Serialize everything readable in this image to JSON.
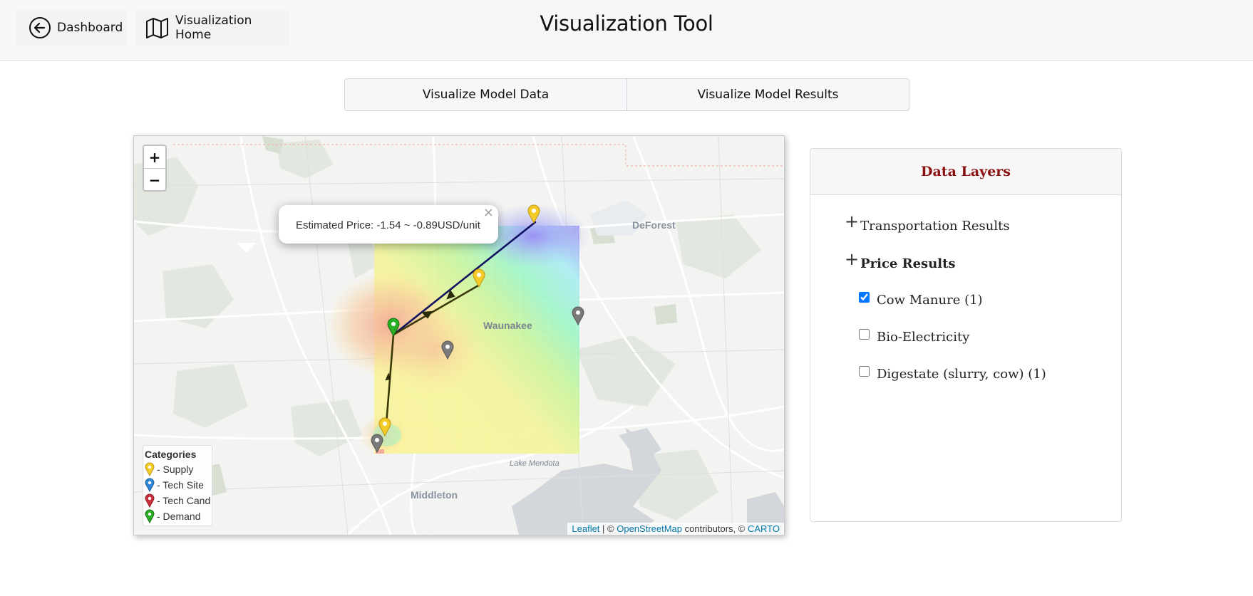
{
  "header": {
    "title": "Visualization Tool",
    "dashboard_label": "Dashboard",
    "viz_home_label": "Visualization Home"
  },
  "tabs": [
    {
      "label": "Visualize Model Data"
    },
    {
      "label": "Visualize Model Results"
    }
  ],
  "map": {
    "zoom_in": "+",
    "zoom_out": "−",
    "places": {
      "deforest": "DeForest",
      "waunakee": "Waunakee",
      "middleton": "Middleton",
      "lake_mendota": "Lake Mendota"
    },
    "popup": {
      "text": "Estimated Price: -1.54 ~ -0.89USD/unit",
      "close": "×"
    },
    "legend": {
      "title": "Categories",
      "items": [
        {
          "label": "- Supply",
          "color": "#f5cb2a"
        },
        {
          "label": "- Tech Site",
          "color": "#2f86d6"
        },
        {
          "label": "- Tech Cand",
          "color": "#c9303c"
        },
        {
          "label": "- Demand",
          "color": "#2aad27"
        }
      ]
    },
    "attribution": {
      "leaflet": "Leaflet",
      "sep1": " | © ",
      "osm": "OpenStreetMap",
      "contributors": " contributors, © ",
      "carto": "CARTO"
    }
  },
  "panel": {
    "title": "Data Layers",
    "groups": [
      {
        "label": "Transportation Results",
        "expand_symbol": "+"
      },
      {
        "label": "Price Results",
        "expand_symbol": "+"
      }
    ],
    "options": [
      {
        "label": "Cow Manure (1)",
        "checked": true
      },
      {
        "label": "Bio-Electricity",
        "checked": false
      },
      {
        "label": "Digestate (slurry, cow) (1)",
        "checked": false
      }
    ]
  },
  "colors": {
    "title_red": "#8b0f0f",
    "link_blue": "#0078a8",
    "supply": "#f5cb2a",
    "demand": "#2aad27",
    "site": "#7a7a7a"
  }
}
